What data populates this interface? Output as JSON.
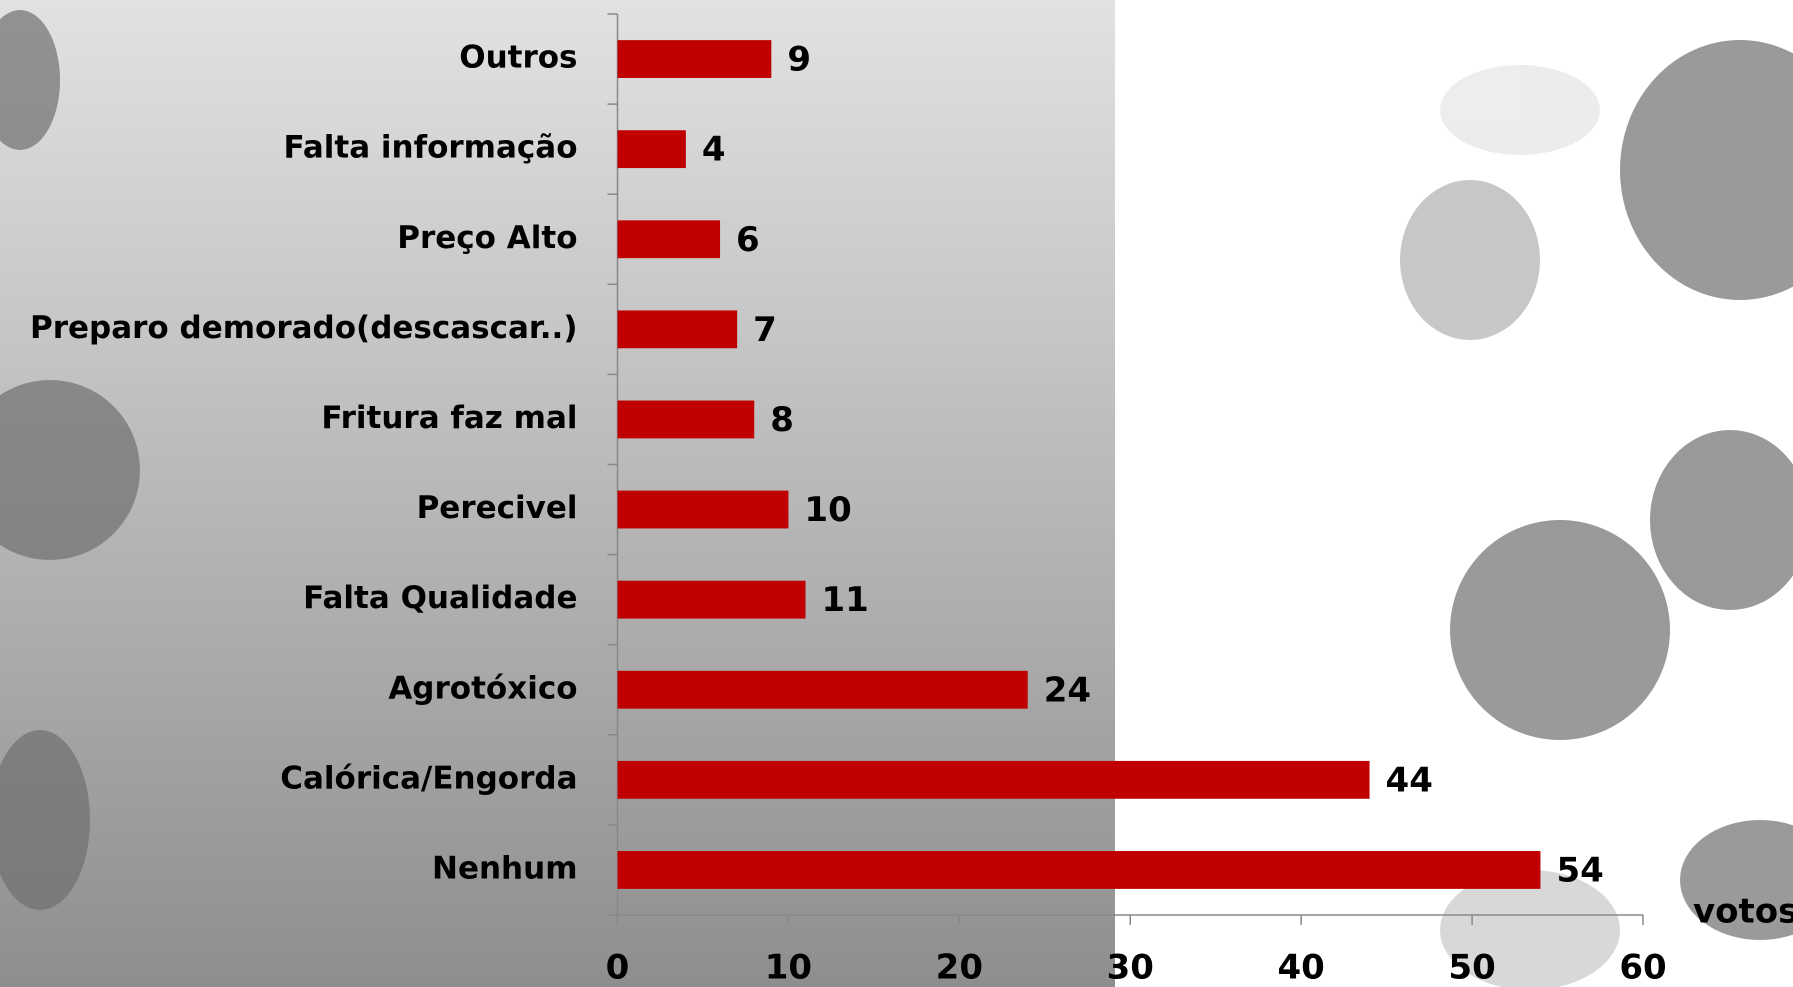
{
  "chart_data": {
    "type": "bar",
    "orientation": "horizontal",
    "categories": [
      "Outros",
      "Falta informação",
      "Preço Alto",
      "Preparo demorado(descascar..)",
      "Fritura faz mal",
      "Perecivel",
      "Falta Qualidade",
      "Agrotóxico",
      "Calórica/Engorda",
      "Nenhum"
    ],
    "values": [
      9,
      4,
      6,
      7,
      8,
      10,
      11,
      24,
      44,
      54
    ],
    "color": "#c00000",
    "x_label": "votos",
    "xlim": [
      0,
      60
    ],
    "xticks": [
      0,
      10,
      20,
      30,
      40,
      50,
      60
    ],
    "grid": false
  }
}
